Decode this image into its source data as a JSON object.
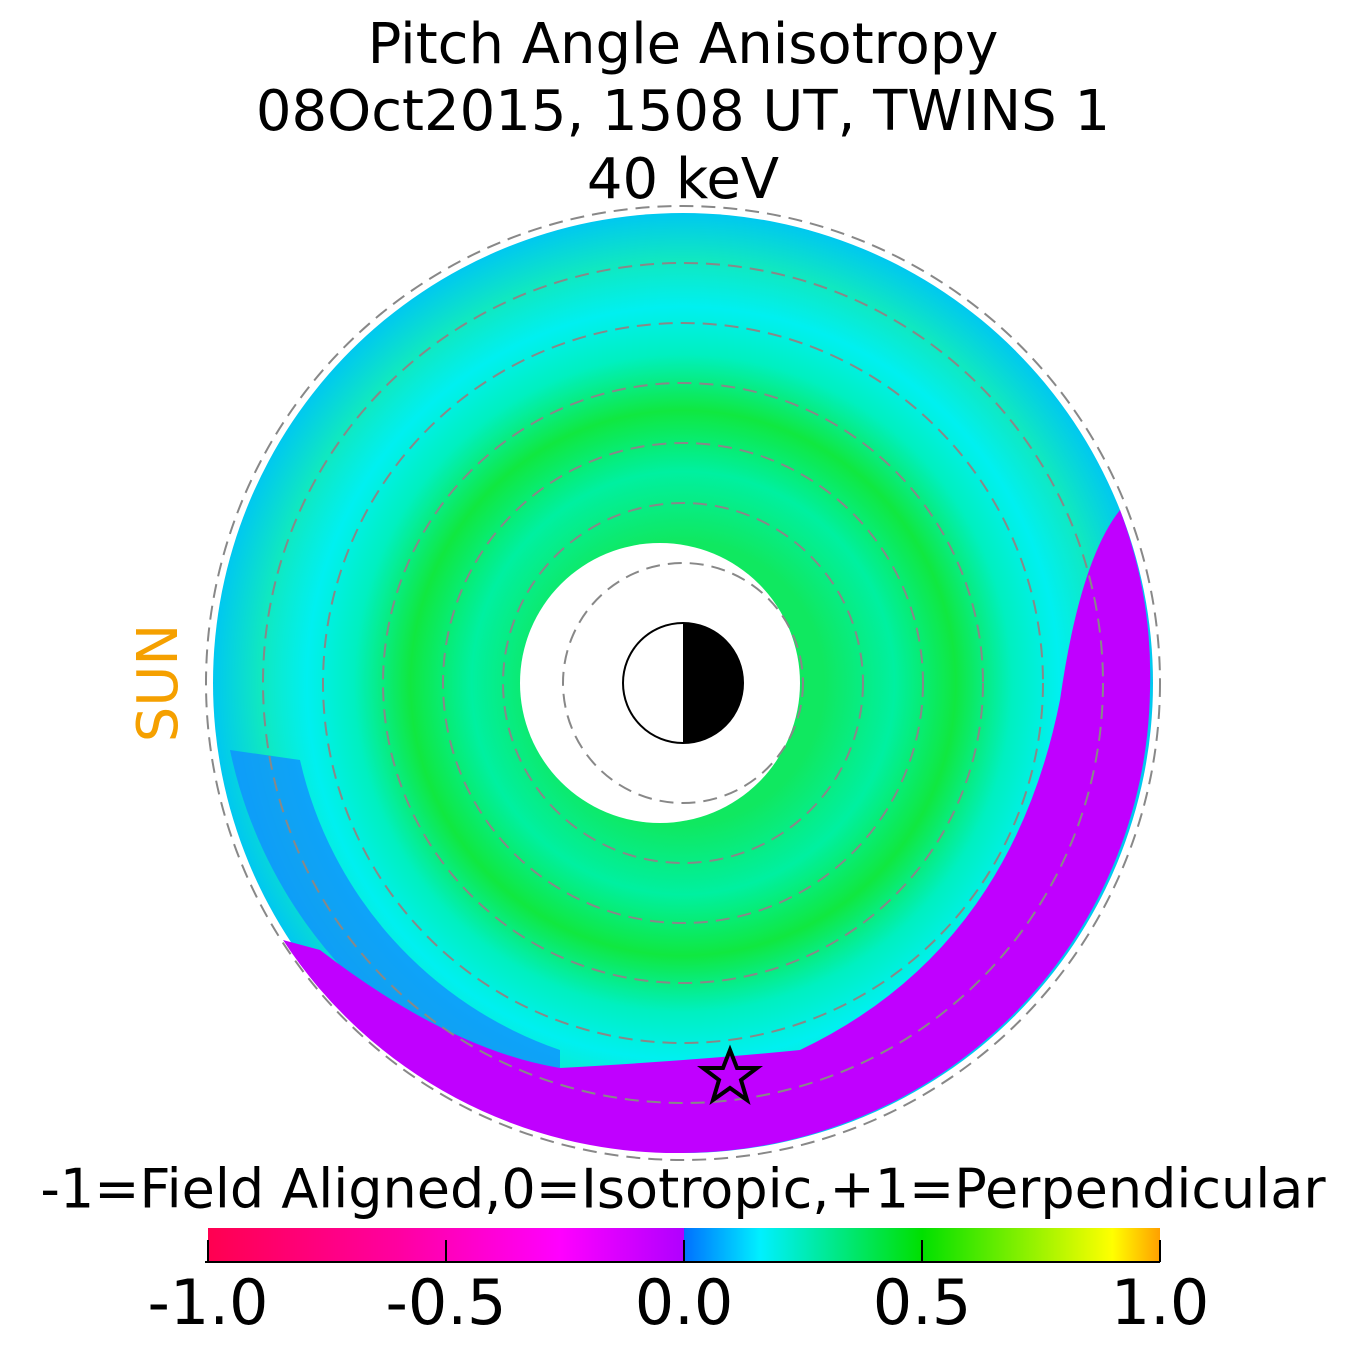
{
  "chart_data": {
    "type": "polar_map",
    "title": [
      "Pitch Angle Anisotropy",
      "08Oct2015, 1508 UT,  TWINS 1",
      "40 keV"
    ],
    "annotation": {
      "text": "SUN",
      "color": "#f5a000"
    },
    "colorbar": {
      "label": "-1=Field Aligned,0=Isotropic,+1=Perpendicular",
      "lim": [
        -1,
        1
      ],
      "ticks": [
        {
          "value": -1,
          "label": "-1.0"
        },
        -0.5,
        {
          "value": 0,
          "label": "0.0"
        },
        0.5,
        {
          "value": 1,
          "label": "1.0"
        }
      ]
    }
  }
}
